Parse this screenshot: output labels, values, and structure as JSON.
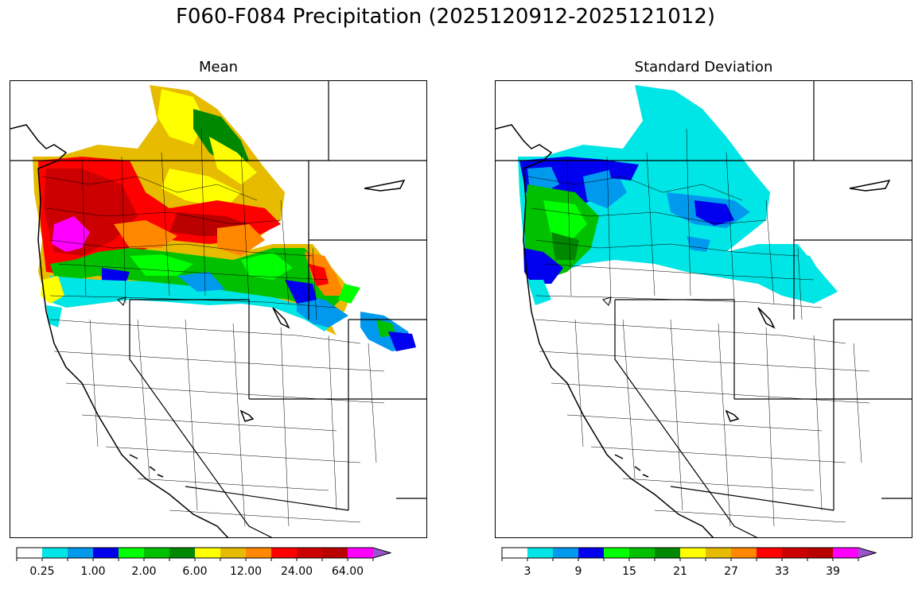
{
  "title": "F060-F084 Precipitation (2025120912-2025121012)",
  "panels": [
    {
      "id": "mean",
      "title": "Mean",
      "colorbar": {
        "colors": [
          "#ffffff",
          "#00e5e5",
          "#0099ee",
          "#0000ee",
          "#00ff00",
          "#00c000",
          "#008800",
          "#ffff00",
          "#e6bb00",
          "#ff8800",
          "#ff0000",
          "#cc0000",
          "#bb0000",
          "#ff00ff",
          "#9955cc"
        ],
        "tick_labels": [
          "0.25",
          "1.00",
          "2.00",
          "6.00",
          "12.00",
          "24.00",
          "64.00"
        ]
      }
    },
    {
      "id": "sd",
      "title": "Standard Deviation",
      "colorbar": {
        "colors": [
          "#ffffff",
          "#00e5e5",
          "#0099ee",
          "#0000ee",
          "#00ff00",
          "#00c000",
          "#008800",
          "#ffff00",
          "#e6bb00",
          "#ff8800",
          "#ff0000",
          "#cc0000",
          "#bb0000",
          "#ff00ff",
          "#9955cc"
        ],
        "tick_labels": [
          "3",
          "9",
          "15",
          "21",
          "27",
          "33",
          "39"
        ]
      }
    }
  ]
}
